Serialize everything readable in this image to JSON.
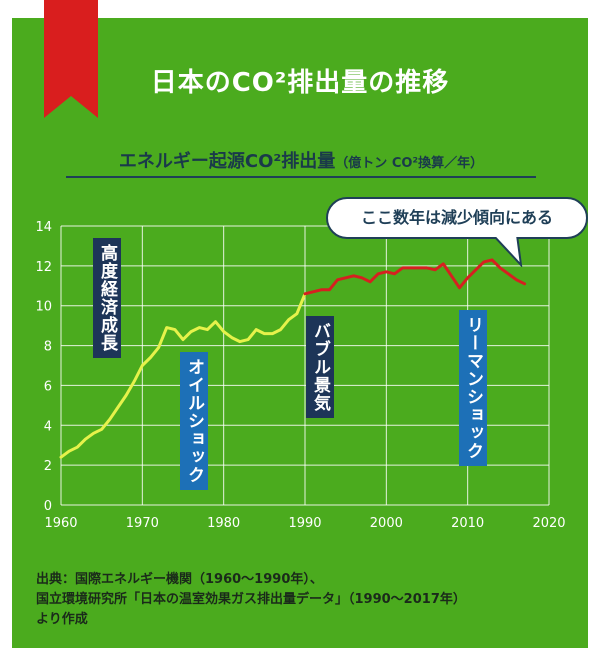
{
  "title": "日本のCO²排出量の推移",
  "subtitle": "エネルギー起源CO²排出量",
  "subtitle_unit": "（億トン CO²換算／年）",
  "annotations": {
    "growth": "高度経済成長",
    "oil_shock": "オイルショック",
    "bubble": "バブル景気",
    "lehman": "リーマンショック",
    "callout": "ここ数年は減少傾向にある"
  },
  "source": {
    "line1": "出典：国際エネルギー機関（1960〜1990年）、",
    "line2": "国立環境研究所「日本の温室効果ガス排出量データ」（1990〜2017年）",
    "line3": "より作成"
  },
  "colors": {
    "background": "#4bab1e",
    "ribbon": "#d91e1e",
    "series_1960_1990": "#e6f24b",
    "series_1990_2017": "#d62020",
    "label_dark": "#1d3558",
    "label_blue": "#1d70b7"
  },
  "chart_data": {
    "type": "line",
    "xlim": [
      1960,
      2020
    ],
    "ylim": [
      0,
      14
    ],
    "x_ticks": [
      1960,
      1970,
      1980,
      1990,
      2000,
      2010,
      2020
    ],
    "y_ticks": [
      0,
      2,
      4,
      6,
      8,
      10,
      12,
      14
    ],
    "grid": true,
    "series": [
      {
        "color": "#e6f24b",
        "points": [
          [
            1960,
            2.4
          ],
          [
            1961,
            2.7
          ],
          [
            1962,
            2.9
          ],
          [
            1963,
            3.3
          ],
          [
            1964,
            3.6
          ],
          [
            1965,
            3.8
          ],
          [
            1966,
            4.3
          ],
          [
            1967,
            4.9
          ],
          [
            1968,
            5.5
          ],
          [
            1969,
            6.2
          ],
          [
            1970,
            7.0
          ],
          [
            1971,
            7.4
          ],
          [
            1972,
            7.9
          ],
          [
            1973,
            8.9
          ],
          [
            1974,
            8.8
          ],
          [
            1975,
            8.3
          ],
          [
            1976,
            8.7
          ],
          [
            1977,
            8.9
          ],
          [
            1978,
            8.8
          ],
          [
            1979,
            9.2
          ],
          [
            1980,
            8.7
          ],
          [
            1981,
            8.4
          ],
          [
            1982,
            8.2
          ],
          [
            1983,
            8.3
          ],
          [
            1984,
            8.8
          ],
          [
            1985,
            8.6
          ],
          [
            1986,
            8.6
          ],
          [
            1987,
            8.8
          ],
          [
            1988,
            9.3
          ],
          [
            1989,
            9.6
          ],
          [
            1990,
            10.6
          ]
        ]
      },
      {
        "color": "#d62020",
        "points": [
          [
            1990,
            10.6
          ],
          [
            1991,
            10.7
          ],
          [
            1992,
            10.8
          ],
          [
            1993,
            10.8
          ],
          [
            1994,
            11.3
          ],
          [
            1995,
            11.4
          ],
          [
            1996,
            11.5
          ],
          [
            1997,
            11.4
          ],
          [
            1998,
            11.2
          ],
          [
            1999,
            11.6
          ],
          [
            2000,
            11.7
          ],
          [
            2001,
            11.6
          ],
          [
            2002,
            11.9
          ],
          [
            2003,
            11.9
          ],
          [
            2004,
            11.9
          ],
          [
            2005,
            11.9
          ],
          [
            2006,
            11.8
          ],
          [
            2007,
            12.1
          ],
          [
            2008,
            11.5
          ],
          [
            2009,
            10.9
          ],
          [
            2010,
            11.4
          ],
          [
            2011,
            11.8
          ],
          [
            2012,
            12.2
          ],
          [
            2013,
            12.3
          ],
          [
            2014,
            11.9
          ],
          [
            2015,
            11.6
          ],
          [
            2016,
            11.3
          ],
          [
            2017,
            11.1
          ]
        ]
      }
    ]
  }
}
